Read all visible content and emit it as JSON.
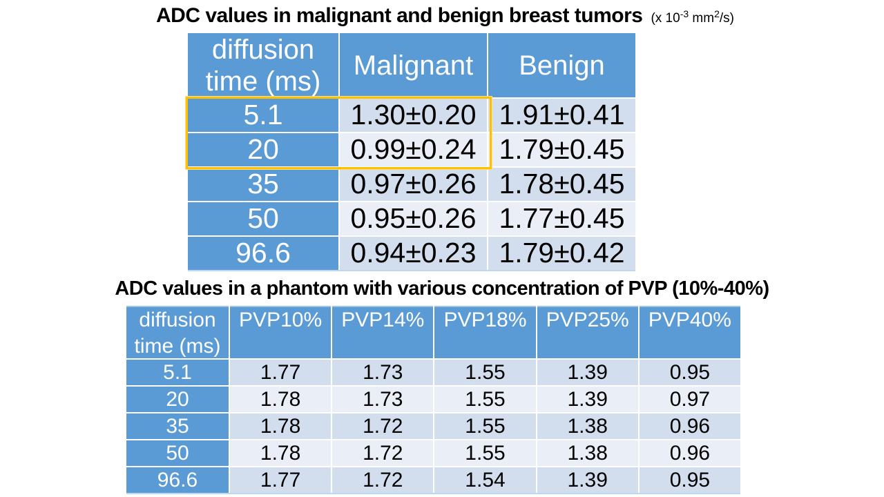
{
  "slide": {
    "background": "#ffffff"
  },
  "colors": {
    "table_header_blue": "#5B9BD5",
    "row_band_dark": "#D2DDED",
    "row_band_light": "#EAEFF7",
    "table_edge_line": "#BDD7EE",
    "highlight_orange": "#FFC000",
    "header_text": "#FFFFFF",
    "body_text": "#000000"
  },
  "unit_label_parts": {
    "prefix": "(x 10",
    "exponent1": "-3",
    "mid": " mm",
    "exponent2": "2",
    "suffix": "/s)"
  },
  "highlight_note": "orange rectangle around diffusion-time and Malignant cells of rows 5.1 and 20",
  "chart_data": [
    {
      "type": "table",
      "title": "ADC values in malignant and benign breast tumors",
      "unit_label": "(x 10-3 mm2/s)",
      "columns": [
        "diffusion time (ms)",
        "Malignant",
        "Benign"
      ],
      "rows": [
        [
          "5.1",
          "1.30±0.20",
          "1.91±0.41"
        ],
        [
          "20",
          "0.99±0.24",
          "1.79±0.45"
        ],
        [
          "35",
          "0.97±0.26",
          "1.78±0.45"
        ],
        [
          "50",
          "0.95±0.26",
          "1.77±0.45"
        ],
        [
          "96.6",
          "0.94±0.23",
          "1.79±0.42"
        ]
      ]
    },
    {
      "type": "table",
      "title": "ADC values in a phantom with various concentration of PVP (10%-40%)",
      "columns": [
        "diffusion time (ms)",
        "PVP10%",
        "PVP14%",
        "PVP18%",
        "PVP25%",
        "PVP40%"
      ],
      "rows": [
        [
          "5.1",
          "1.77",
          "1.73",
          "1.55",
          "1.39",
          "0.95"
        ],
        [
          "20",
          "1.78",
          "1.73",
          "1.55",
          "1.39",
          "0.97"
        ],
        [
          "35",
          "1.78",
          "1.72",
          "1.55",
          "1.38",
          "0.96"
        ],
        [
          "50",
          "1.78",
          "1.72",
          "1.55",
          "1.38",
          "0.96"
        ],
        [
          "96.6",
          "1.77",
          "1.72",
          "1.54",
          "1.39",
          "0.95"
        ]
      ]
    }
  ]
}
